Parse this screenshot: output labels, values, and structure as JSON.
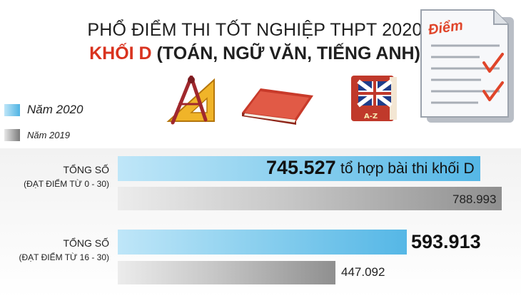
{
  "title": "PHỔ ĐIỂM THI TỐT NGHIỆP THPT 2020",
  "subtitle_accent": "KHỐI D",
  "subtitle_rest": "(TOÁN, NGỮ VĂN, TIẾNG ANH)",
  "doc_icon_label": "Điểm",
  "colors": {
    "accent": "#d9331f",
    "y2020": "#55b7e6",
    "y2019": "#8f8f8f"
  },
  "icons": [
    "compass-ruler-icon",
    "book-icon",
    "english-book-icon",
    "score-sheet-icon"
  ],
  "chart_data": {
    "type": "bar",
    "orientation": "horizontal",
    "legend": [
      "Năm 2020",
      "Năm 2019"
    ],
    "categories": [
      {
        "line1": "TỔNG SỐ",
        "line2": "(ĐẠT ĐIỂM TỪ 0 - 30)"
      },
      {
        "line1": "TỔNG SỐ",
        "line2": "(ĐẠT ĐIỂM TỪ 16 - 30)"
      }
    ],
    "series": [
      {
        "name": "Năm 2020",
        "values": [
          745527,
          593913
        ],
        "labels": [
          "745.527",
          "593.913"
        ]
      },
      {
        "name": "Năm 2019",
        "values": [
          788993,
          447092
        ],
        "labels": [
          "788.993",
          "447.092"
        ]
      }
    ],
    "annotation": "tổ hợp bài thi khối D",
    "xlim": [
      0,
      850000
    ]
  }
}
